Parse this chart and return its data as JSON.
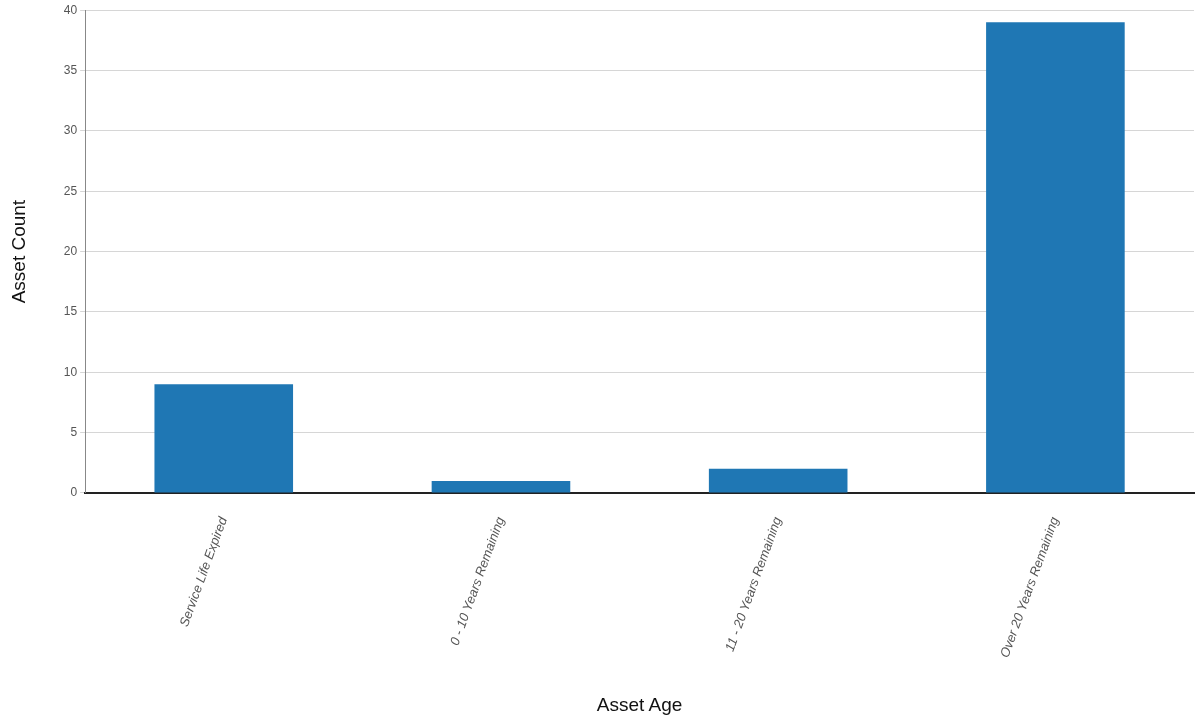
{
  "chart_data": {
    "type": "bar",
    "xlabel": "Asset Age",
    "ylabel": "Asset Count",
    "categories": [
      "Service Life Expired",
      "0 - 10 Years Remaining",
      "11 - 20 Years Remaining",
      "Over 20 Years Remaining"
    ],
    "values": [
      9,
      1,
      2,
      39
    ],
    "color": "#1f77b4",
    "ylim": [
      0,
      40
    ],
    "yticks": [
      0,
      5,
      10,
      15,
      20,
      25,
      30,
      35,
      40
    ],
    "grid": "y",
    "legend": false
  }
}
